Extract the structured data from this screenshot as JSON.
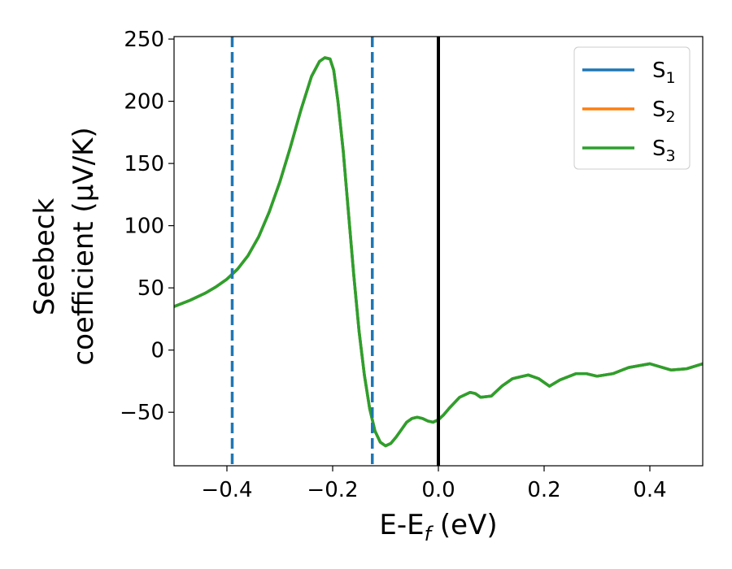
{
  "chart_data": {
    "type": "line",
    "xlabel": "E-E",
    "xlabel_sub": "f",
    "xlabel_unit": " (eV)",
    "ylabel_line1": "Seebeck",
    "ylabel_line2": "coefficient  (μV/K)",
    "xlim": [
      -0.5,
      0.5
    ],
    "ylim": [
      -93,
      252
    ],
    "xticks": [
      -0.4,
      -0.2,
      0.0,
      0.2,
      0.4
    ],
    "xtick_labels": [
      "−0.4",
      "−0.2",
      "0.0",
      "0.2",
      "0.4"
    ],
    "yticks": [
      -50,
      0,
      50,
      100,
      150,
      200,
      250
    ],
    "ytick_labels": [
      "−50",
      "0",
      "50",
      "100",
      "150",
      "200",
      "250"
    ],
    "grid": false,
    "legend_position": "top-right",
    "x": [
      -0.5,
      -0.47,
      -0.44,
      -0.42,
      -0.4,
      -0.38,
      -0.36,
      -0.34,
      -0.32,
      -0.3,
      -0.28,
      -0.26,
      -0.24,
      -0.225,
      -0.215,
      -0.205,
      -0.198,
      -0.19,
      -0.18,
      -0.17,
      -0.16,
      -0.15,
      -0.14,
      -0.13,
      -0.12,
      -0.11,
      -0.1,
      -0.09,
      -0.08,
      -0.07,
      -0.06,
      -0.05,
      -0.04,
      -0.03,
      -0.02,
      -0.01,
      0.0,
      0.01,
      0.02,
      0.04,
      0.06,
      0.07,
      0.08,
      0.1,
      0.12,
      0.14,
      0.17,
      0.19,
      0.21,
      0.23,
      0.26,
      0.28,
      0.3,
      0.33,
      0.36,
      0.4,
      0.44,
      0.47,
      0.5
    ],
    "series": [
      {
        "name": "S",
        "sub": "1",
        "color": "#1f77b4",
        "values": [
          35,
          40,
          46,
          51,
          57,
          65,
          76,
          91,
          111,
          135,
          163,
          193,
          220,
          232,
          235,
          234,
          225,
          200,
          160,
          110,
          60,
          15,
          -20,
          -47,
          -65,
          -74,
          -77,
          -75,
          -70,
          -64,
          -58,
          -55,
          -54,
          -55,
          -57,
          -58,
          -56,
          -52,
          -47,
          -38,
          -34,
          -35,
          -38,
          -37,
          -29,
          -23,
          -20,
          -23,
          -29,
          -24,
          -19,
          -19,
          -21,
          -19,
          -14,
          -11,
          -16,
          -15,
          -11
        ]
      },
      {
        "name": "S",
        "sub": "2",
        "color": "#ff7f0e",
        "values": [
          35,
          40,
          46,
          51,
          57,
          65,
          76,
          91,
          111,
          135,
          163,
          193,
          220,
          232,
          235,
          234,
          225,
          200,
          160,
          110,
          60,
          15,
          -20,
          -47,
          -65,
          -74,
          -77,
          -75,
          -70,
          -64,
          -58,
          -55,
          -54,
          -55,
          -57,
          -58,
          -56,
          -52,
          -47,
          -38,
          -34,
          -35,
          -38,
          -37,
          -29,
          -23,
          -20,
          -23,
          -29,
          -24,
          -19,
          -19,
          -21,
          -19,
          -14,
          -11,
          -16,
          -15,
          -11
        ]
      },
      {
        "name": "S",
        "sub": "3",
        "color": "#2ca02c",
        "values": [
          35,
          40,
          46,
          51,
          57,
          65,
          76,
          91,
          111,
          135,
          163,
          193,
          220,
          232,
          235,
          234,
          225,
          200,
          160,
          110,
          60,
          15,
          -20,
          -47,
          -65,
          -74,
          -77,
          -75,
          -70,
          -64,
          -58,
          -55,
          -54,
          -55,
          -57,
          -58,
          -56,
          -52,
          -47,
          -38,
          -34,
          -35,
          -38,
          -37,
          -29,
          -23,
          -20,
          -23,
          -29,
          -24,
          -19,
          -19,
          -21,
          -19,
          -14,
          -11,
          -16,
          -15,
          -11
        ]
      }
    ],
    "vlines": [
      {
        "x": -0.39,
        "color": "#1f77b4",
        "style": "dashed"
      },
      {
        "x": -0.125,
        "color": "#1f77b4",
        "style": "dashed"
      },
      {
        "x": 0.0,
        "color": "#000000",
        "style": "solid"
      }
    ]
  }
}
